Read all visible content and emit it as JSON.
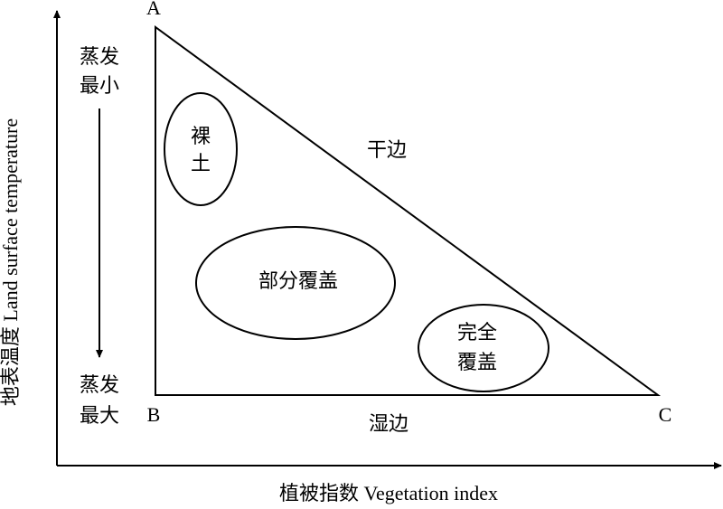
{
  "axes": {
    "y_label": "地表温度 Land surface temperature",
    "x_label": "植被指数 Vegetation index"
  },
  "vertices": {
    "a": "A",
    "b": "B",
    "c": "C"
  },
  "edges": {
    "dry": "干边",
    "wet": "湿边"
  },
  "evaporation": {
    "top": [
      "蒸发",
      "最小"
    ],
    "bottom": [
      "蒸发",
      "最大"
    ]
  },
  "regions": [
    {
      "lines": [
        "裸",
        "土"
      ]
    },
    {
      "lines": [
        "部分覆盖"
      ]
    },
    {
      "lines": [
        "完全",
        "覆盖"
      ]
    }
  ]
}
